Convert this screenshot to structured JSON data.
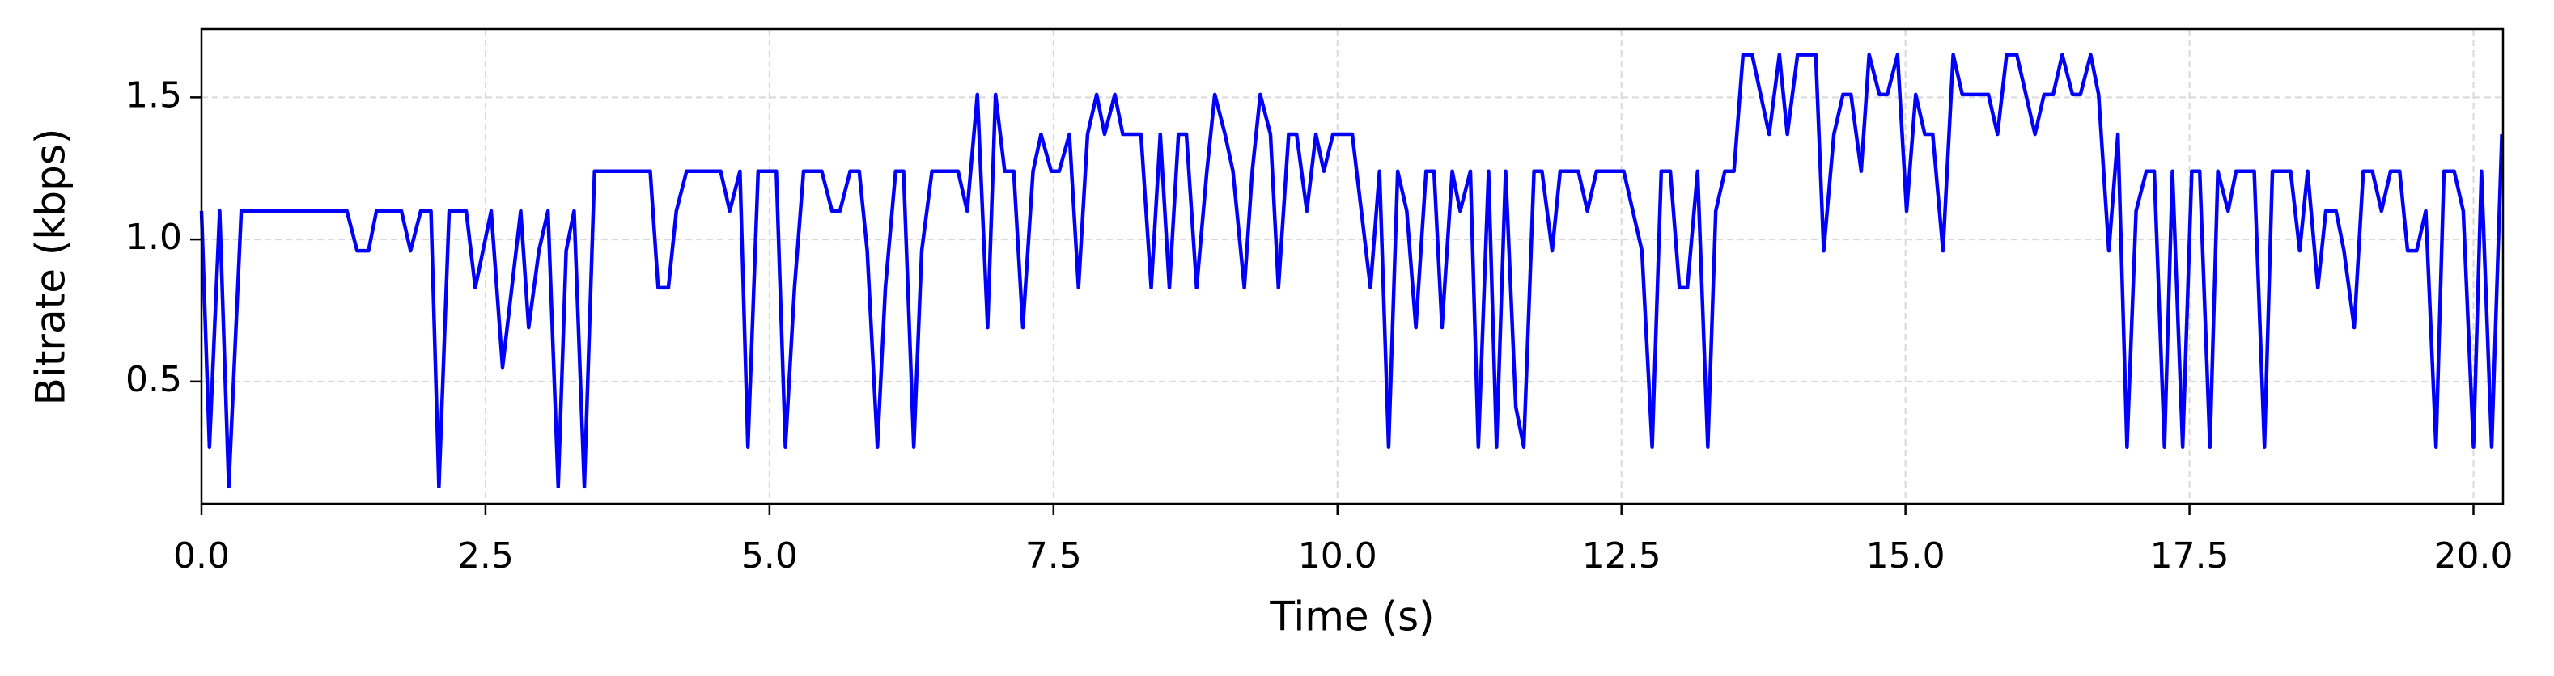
{
  "chart_data": {
    "type": "line",
    "xlabel": "Time (s)",
    "ylabel": "Bitrate (kbps)",
    "color": "#0000ff",
    "grid": true,
    "xlim": [
      0,
      20.26
    ],
    "ylim": [
      0.07,
      1.74
    ],
    "xticks": [
      {
        "value": 0,
        "label": "0.0"
      },
      2.5,
      {
        "value": 5,
        "label": "5.0"
      },
      7.5,
      {
        "value": 10,
        "label": "10.0"
      },
      12.5,
      {
        "value": 15,
        "label": "15.0"
      },
      17.5,
      {
        "value": 20,
        "label": "20.0"
      }
    ],
    "yticks": [
      0.5,
      {
        "value": 1,
        "label": "1.0"
      },
      1.5
    ],
    "x": [
      0,
      0.07,
      0.16,
      0.24,
      0.35,
      1.28,
      1.37,
      1.47,
      1.54,
      1.76,
      1.84,
      1.93,
      2.02,
      2.09,
      2.18,
      2.33,
      2.41,
      2.55,
      2.65,
      2.81,
      2.88,
      2.97,
      3.05,
      3.14,
      3.21,
      3.28,
      3.37,
      3.46,
      3.95,
      4.02,
      4.11,
      4.18,
      4.27,
      4.57,
      4.65,
      4.74,
      4.81,
      4.9,
      5.06,
      5.14,
      5.22,
      5.3,
      5.46,
      5.55,
      5.62,
      5.71,
      5.79,
      5.86,
      5.95,
      6.02,
      6.11,
      6.18,
      6.27,
      6.34,
      6.43,
      6.66,
      6.74,
      6.83,
      6.92,
      6.99,
      7.07,
      7.15,
      7.23,
      7.32,
      7.39,
      7.48,
      7.55,
      7.64,
      7.72,
      7.8,
      7.88,
      7.95,
      8.04,
      8.11,
      8.27,
      8.36,
      8.44,
      8.52,
      8.6,
      8.67,
      8.76,
      8.85,
      8.92,
      9.01,
      9.08,
      9.18,
      9.25,
      9.32,
      9.41,
      9.48,
      9.57,
      9.64,
      9.73,
      9.81,
      9.88,
      9.96,
      10.13,
      10.29,
      10.37,
      10.45,
      10.53,
      10.61,
      10.69,
      10.78,
      10.85,
      10.92,
      11.01,
      11.08,
      11.17,
      11.24,
      11.33,
      11.4,
      11.48,
      11.57,
      11.64,
      11.73,
      11.8,
      11.89,
      11.96,
      12.12,
      12.2,
      12.28,
      12.52,
      12.68,
      12.77,
      12.85,
      12.93,
      13.01,
      13.08,
      13.17,
      13.26,
      13.33,
      13.41,
      13.49,
      13.57,
      13.65,
      13.8,
      13.89,
      13.96,
      14.05,
      14.21,
      14.28,
      14.37,
      14.45,
      14.52,
      14.61,
      14.68,
      14.77,
      14.84,
      14.93,
      15.01,
      15.09,
      15.17,
      15.24,
      15.33,
      15.42,
      15.5,
      15.73,
      15.81,
      15.89,
      15.98,
      16.14,
      16.22,
      16.3,
      16.38,
      16.47,
      16.54,
      16.63,
      16.7,
      16.79,
      16.87,
      16.95,
      17.03,
      17.12,
      17.19,
      17.28,
      17.35,
      17.44,
      17.52,
      17.59,
      17.68,
      17.75,
      17.84,
      17.91,
      18.07,
      18.16,
      18.23,
      18.39,
      18.47,
      18.54,
      18.63,
      18.7,
      18.79,
      18.86,
      18.95,
      19.03,
      19.11,
      19.19,
      19.27,
      19.35,
      19.42,
      19.5,
      19.58,
      19.67,
      19.74,
      19.83,
      19.91,
      20.0,
      20.07,
      20.16,
      20.25
    ],
    "values": [
      1.1,
      0.27,
      1.1,
      0.13,
      1.1,
      1.1,
      0.96,
      0.96,
      1.1,
      1.1,
      0.96,
      1.1,
      1.1,
      0.13,
      1.1,
      1.1,
      0.83,
      1.1,
      0.55,
      1.1,
      0.69,
      0.96,
      1.1,
      0.13,
      0.96,
      1.1,
      0.13,
      1.24,
      1.24,
      0.83,
      0.83,
      1.1,
      1.24,
      1.24,
      1.1,
      1.24,
      0.27,
      1.24,
      1.24,
      0.27,
      0.83,
      1.24,
      1.24,
      1.1,
      1.1,
      1.24,
      1.24,
      0.96,
      0.27,
      0.83,
      1.24,
      1.24,
      0.27,
      0.96,
      1.24,
      1.24,
      1.1,
      1.51,
      0.69,
      1.51,
      1.24,
      1.24,
      0.69,
      1.24,
      1.37,
      1.24,
      1.24,
      1.37,
      0.83,
      1.37,
      1.51,
      1.37,
      1.51,
      1.37,
      1.37,
      0.83,
      1.37,
      0.83,
      1.37,
      1.37,
      0.83,
      1.24,
      1.51,
      1.37,
      1.24,
      0.83,
      1.24,
      1.51,
      1.37,
      0.83,
      1.37,
      1.37,
      1.1,
      1.37,
      1.24,
      1.37,
      1.37,
      0.83,
      1.24,
      0.27,
      1.24,
      1.1,
      0.69,
      1.24,
      1.24,
      0.69,
      1.24,
      1.1,
      1.24,
      0.27,
      1.24,
      0.27,
      1.24,
      0.41,
      0.27,
      1.24,
      1.24,
      0.96,
      1.24,
      1.24,
      1.1,
      1.24,
      1.24,
      0.96,
      0.27,
      1.24,
      1.24,
      0.83,
      0.83,
      1.24,
      0.27,
      1.1,
      1.24,
      1.24,
      1.65,
      1.65,
      1.37,
      1.65,
      1.37,
      1.65,
      1.65,
      0.96,
      1.37,
      1.51,
      1.51,
      1.24,
      1.65,
      1.51,
      1.51,
      1.65,
      1.1,
      1.51,
      1.37,
      1.37,
      0.96,
      1.65,
      1.51,
      1.51,
      1.37,
      1.65,
      1.65,
      1.37,
      1.51,
      1.51,
      1.65,
      1.51,
      1.51,
      1.65,
      1.51,
      0.96,
      1.37,
      0.27,
      1.1,
      1.24,
      1.24,
      0.27,
      1.24,
      0.27,
      1.24,
      1.24,
      0.27,
      1.24,
      1.1,
      1.24,
      1.24,
      0.27,
      1.24,
      1.24,
      0.96,
      1.24,
      0.83,
      1.1,
      1.1,
      0.96,
      0.69,
      1.24,
      1.24,
      1.1,
      1.24,
      1.24,
      0.96,
      0.96,
      1.1,
      0.27,
      1.24,
      1.24,
      1.1,
      0.27,
      1.24,
      0.27,
      1.37
    ]
  }
}
